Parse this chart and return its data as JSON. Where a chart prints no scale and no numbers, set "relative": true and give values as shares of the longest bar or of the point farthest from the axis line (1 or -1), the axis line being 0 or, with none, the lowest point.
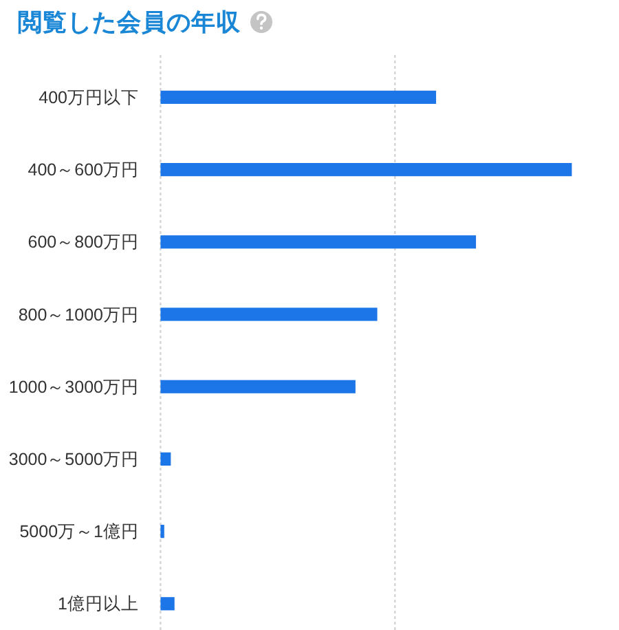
{
  "chart_data": {
    "type": "bar",
    "orientation": "horizontal",
    "relative": true,
    "title": "閲覧した会員の年収",
    "categories": [
      "400万円以下",
      "400～600万円",
      "600～800万円",
      "800～1000万円",
      "1000～3000万円",
      "3000～5000万円",
      "5000万～1億円",
      "1億円以上"
    ],
    "values": [
      0.67,
      1,
      0.767,
      0.527,
      0.474,
      0.025,
      0.009,
      0.034
    ],
    "color": "#1d76e8",
    "ref_lines": [
      {
        "axis": "x",
        "value": 0.57,
        "color": "#d4d4d4",
        "line_style": "dotted"
      }
    ]
  }
}
